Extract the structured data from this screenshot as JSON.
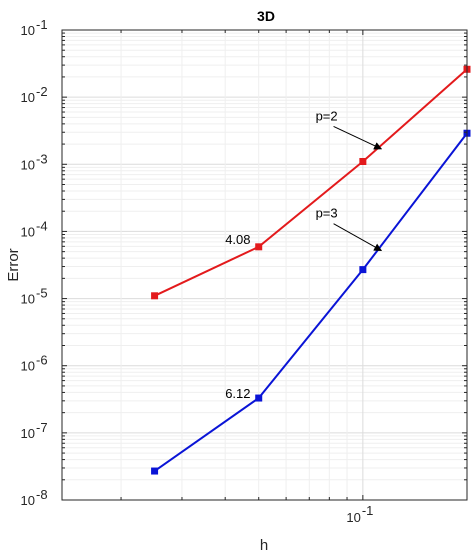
{
  "chart_data": {
    "type": "line",
    "title": "3D",
    "xlabel": "h",
    "ylabel": "Error",
    "xscale": "log",
    "yscale": "log",
    "xlim": [
      0.0135,
      0.2
    ],
    "ylim": [
      1e-08,
      0.1
    ],
    "grid": "on (major and minor)",
    "x_tick_labels": [
      {
        "value": 0.1,
        "base": "10",
        "exp": "-1"
      }
    ],
    "y_tick_labels": [
      {
        "value": 1e-08,
        "base": "10",
        "exp": "-8"
      },
      {
        "value": 1e-07,
        "base": "10",
        "exp": "-7"
      },
      {
        "value": 1e-06,
        "base": "10",
        "exp": "-6"
      },
      {
        "value": 1e-05,
        "base": "10",
        "exp": "-5"
      },
      {
        "value": 0.0001,
        "base": "10",
        "exp": "-4"
      },
      {
        "value": 0.001,
        "base": "10",
        "exp": "-3"
      },
      {
        "value": 0.01,
        "base": "10",
        "exp": "-2"
      },
      {
        "value": 0.1,
        "base": "10",
        "exp": "-1"
      }
    ],
    "series": [
      {
        "color": "#e31a1c",
        "marker": "square",
        "x": [
          0.025,
          0.05,
          0.1,
          0.2
        ],
        "y": [
          1.1e-05,
          5.9e-05,
          0.0011,
          0.026
        ]
      },
      {
        "color": "#0a14d6",
        "marker": "square",
        "x": [
          0.025,
          0.05,
          0.1,
          0.2
        ],
        "y": [
          2.7e-08,
          3.3e-07,
          2.7e-05,
          0.0029
        ]
      }
    ],
    "annotations": [
      {
        "text": "p=2",
        "x": 0.073,
        "y": 0.0045,
        "arrow_to": [
          0.113,
          0.0017
        ]
      },
      {
        "text": "p=3",
        "x": 0.073,
        "y": 0.00016,
        "arrow_to": [
          0.113,
          5.2e-05
        ]
      },
      {
        "text": "4.08",
        "x": 0.04,
        "y": 6.5e-05
      },
      {
        "text": "6.12",
        "x": 0.04,
        "y": 3.3e-07
      }
    ]
  }
}
